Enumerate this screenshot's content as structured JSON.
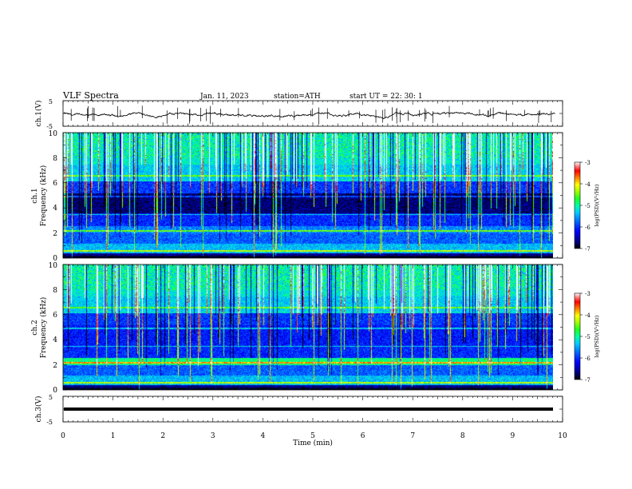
{
  "header": {
    "title": "VLF  Spectra",
    "date": "Jan.  11,  2023",
    "station": "station=ATH",
    "start": "start  UT  =    22: 30: 1"
  },
  "chart_data": [
    {
      "type": "line",
      "name": "ch1-waveform",
      "ylabel": "ch.1(V)",
      "ylim": [
        -5,
        5
      ],
      "ytick_labels": [
        "5",
        "-5"
      ],
      "xlim": [
        0,
        10
      ]
    },
    {
      "type": "heatmap",
      "name": "ch1-spectrogram",
      "ylabel": "ch.1\nFrequency (kHz)",
      "ylabel_line1": "ch.1",
      "ylabel_line2": "Frequency  (kHz)",
      "ylim": [
        0,
        10
      ],
      "ytick_labels": [
        "0",
        "2",
        "4",
        "6",
        "8",
        "10"
      ],
      "xlim": [
        0,
        10
      ],
      "data_xmax": 9.85,
      "colorbar": {
        "label": "log(PSD)(V²/Hz)",
        "range": [
          -7,
          -3
        ],
        "tick_labels": [
          "-3",
          "-4",
          "-5",
          "-6",
          "-7"
        ]
      }
    },
    {
      "type": "heatmap",
      "name": "ch2-spectrogram",
      "ylabel_line1": "ch.2",
      "ylabel_line2": "Frequency  (kHz)",
      "ylim": [
        0,
        10
      ],
      "ytick_labels": [
        "0",
        "2",
        "4",
        "6",
        "8",
        "10"
      ],
      "xlim": [
        0,
        10
      ],
      "data_xmax": 9.85,
      "colorbar": {
        "label": "log(PSD)(V²/Hz)",
        "range": [
          -7,
          -3
        ],
        "tick_labels": [
          "-3",
          "-4",
          "-5",
          "-6",
          "-7"
        ]
      }
    },
    {
      "type": "line",
      "name": "ch3-waveform",
      "ylabel": "ch.3(V)",
      "ylim": [
        -5,
        5
      ],
      "ytick_labels": [
        "5",
        "-5"
      ],
      "xlim": [
        0,
        10
      ]
    }
  ],
  "xaxis": {
    "label": "Time  (min)",
    "range": [
      0,
      10
    ],
    "tick_labels": [
      "0",
      "1",
      "2",
      "3",
      "4",
      "5",
      "6",
      "7",
      "8",
      "9",
      "10"
    ]
  },
  "colors": {
    "colormap": [
      "#000000",
      "#000080",
      "#0000ff",
      "#0060ff",
      "#00c0ff",
      "#00ffc0",
      "#00ff40",
      "#80ff00",
      "#ffff00",
      "#ff8000",
      "#ff0000",
      "#ff8080",
      "#ffffff"
    ]
  }
}
